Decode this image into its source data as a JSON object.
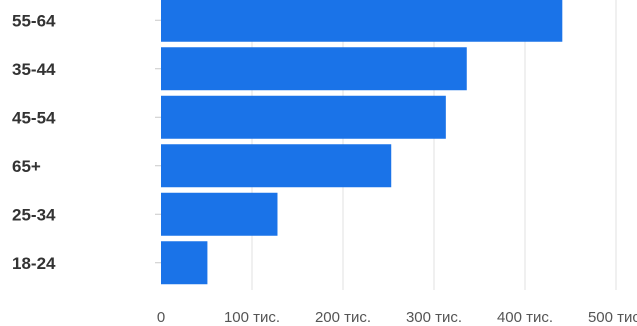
{
  "chart_data": {
    "type": "bar",
    "orientation": "horizontal",
    "categories": [
      "55-64",
      "35-44",
      "45-54",
      "65+",
      "25-34",
      "18-24"
    ],
    "values": [
      441000,
      336000,
      313000,
      253000,
      128000,
      51000
    ],
    "xlim": [
      0,
      500000
    ],
    "x_tick_labels": [
      "0",
      "100 тис.",
      "200 тис.",
      "300 тис.",
      "400 тис.",
      "500 тис."
    ],
    "bar_color": "#1a73e8",
    "grid": true
  }
}
